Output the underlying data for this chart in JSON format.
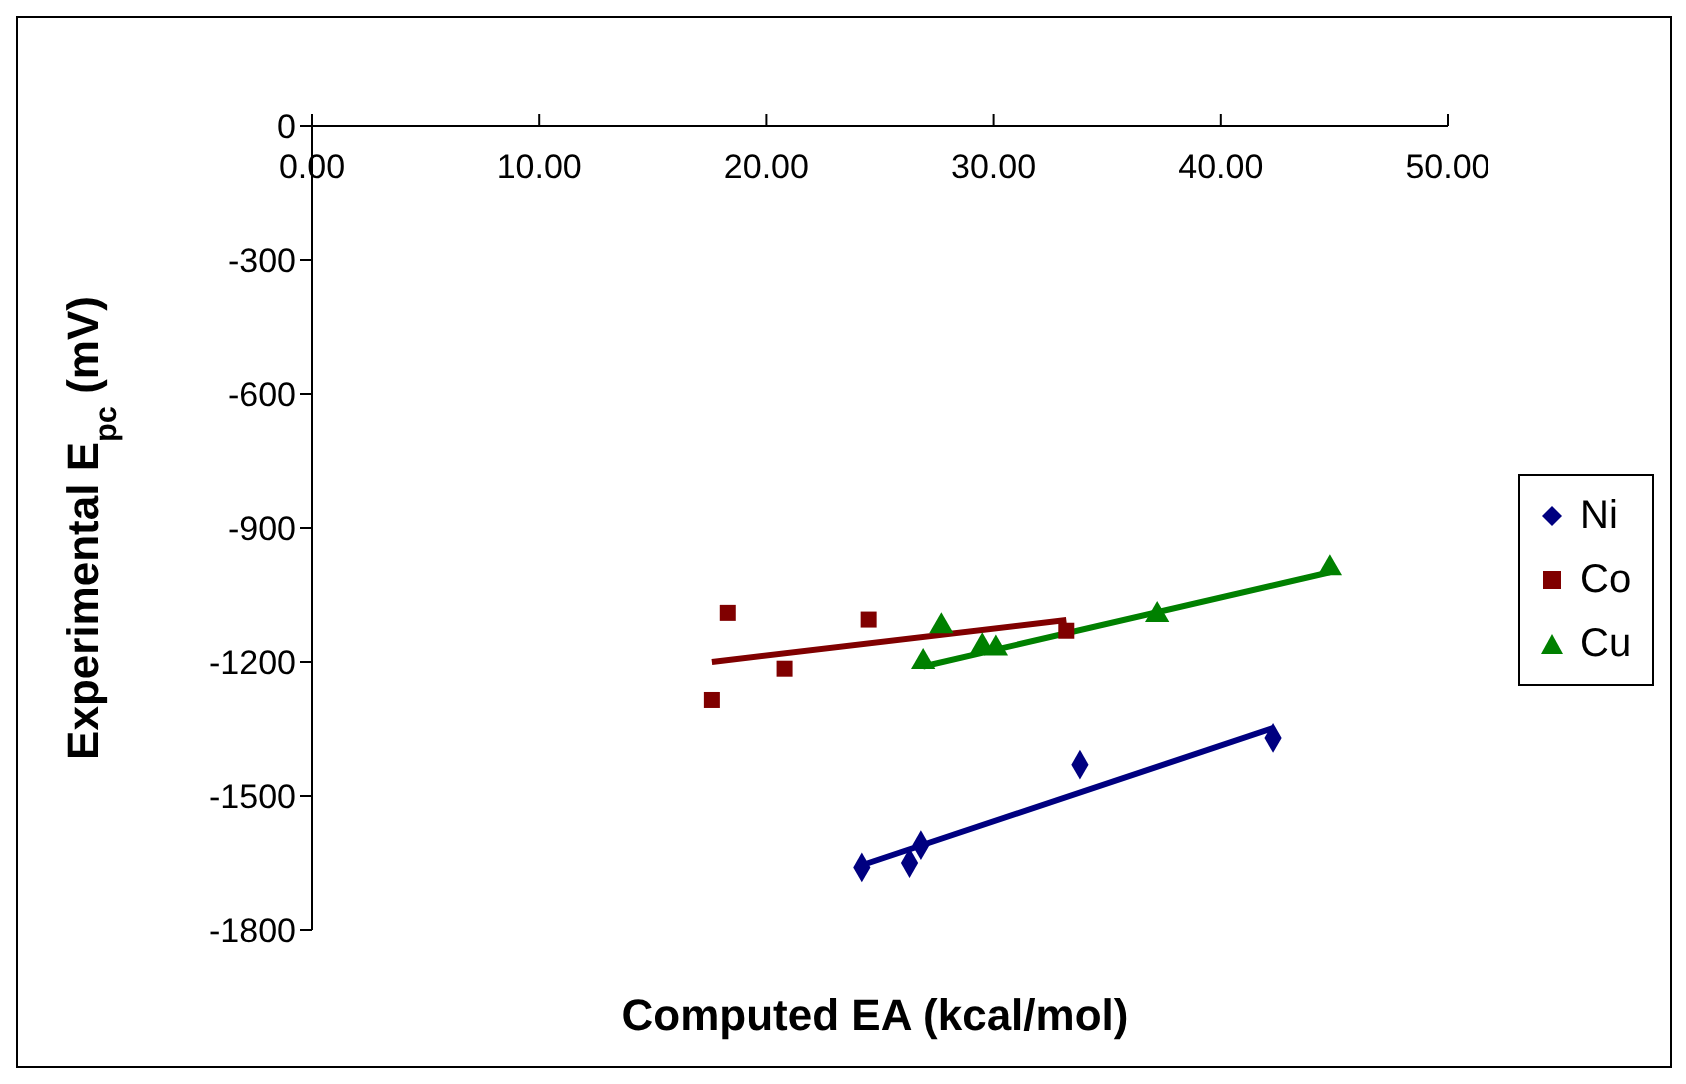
{
  "chart_data": {
    "type": "scatter",
    "xlabel": "Computed EA (kcal/mol)",
    "ylabel": "Experimental E$_{pc}$ (mV)",
    "xlim": [
      0,
      50
    ],
    "xticks": [
      {
        "value": 0,
        "label": "0.00"
      },
      {
        "value": 10,
        "label": "10.00"
      },
      {
        "value": 20,
        "label": "20.00"
      },
      {
        "value": 30,
        "label": "30.00"
      },
      {
        "value": 40,
        "label": "40.00"
      },
      {
        "value": 50,
        "label": "50.00"
      }
    ],
    "ylim": [
      -1800,
      0
    ],
    "yticks": [
      0,
      -300,
      -600,
      -900,
      -1200,
      -1500,
      -1800
    ],
    "grid": false,
    "legend": "right",
    "series": [
      {
        "name": "Ni",
        "marker": "diamond",
        "color": "#000080",
        "x": [
          24.2,
          26.3,
          26.8,
          33.8,
          42.3
        ],
        "values": [
          -1660,
          -1650,
          -1610,
          -1430,
          -1370
        ]
      },
      {
        "name": "Co",
        "marker": "square",
        "color": "#800000",
        "x": [
          17.6,
          18.3,
          20.8,
          24.5,
          33.2
        ],
        "values": [
          -1285,
          -1090,
          -1215,
          -1105,
          -1130
        ]
      },
      {
        "name": "Cu",
        "marker": "triangle",
        "color": "#008000",
        "x": [
          26.9,
          27.7,
          29.5,
          30.1,
          37.2,
          44.8
        ],
        "values": [
          -1200,
          -1120,
          -1165,
          -1170,
          -1095,
          -990
        ]
      },
      {
        "type": "line",
        "color": "#000080",
        "x": [
          24.2,
          42.3
        ],
        "values": [
          -1655,
          -1348
        ]
      },
      {
        "type": "line",
        "color": "#800000",
        "x": [
          17.6,
          33.2
        ],
        "values": [
          -1200,
          -1106
        ]
      },
      {
        "type": "line",
        "color": "#008000",
        "x": [
          26.9,
          44.8
        ],
        "values": [
          -1210,
          -999
        ]
      }
    ]
  }
}
